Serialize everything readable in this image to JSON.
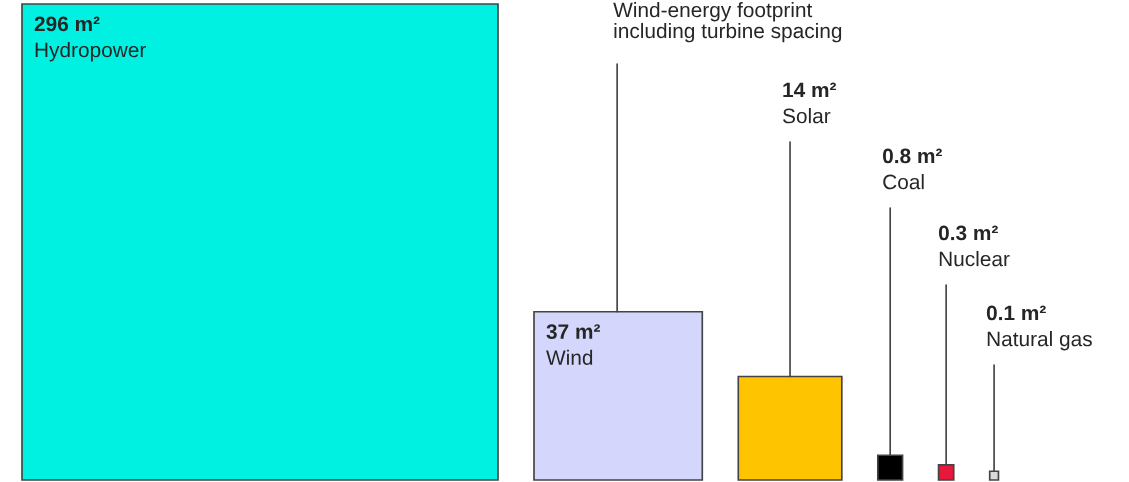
{
  "chart_data": {
    "type": "other",
    "categories": [
      "Hydropower",
      "Wind",
      "Solar",
      "Coal",
      "Nuclear",
      "Natural gas"
    ],
    "values": [
      296,
      37,
      14,
      0.8,
      0.3,
      0.1
    ],
    "value_labels": [
      "296 m²",
      "37 m²",
      "14 m²",
      "0.8 m²",
      "0.3 m²",
      "0.1 m²"
    ],
    "colors": [
      "#00f0e2",
      "#d4d7fb",
      "#ffc400",
      "#000000",
      "#e8173c",
      "#d9d9d9"
    ],
    "annotations": [
      {
        "text": "Wind-energy footprint\nincluding turbine spacing",
        "x": "Wind"
      }
    ]
  }
}
